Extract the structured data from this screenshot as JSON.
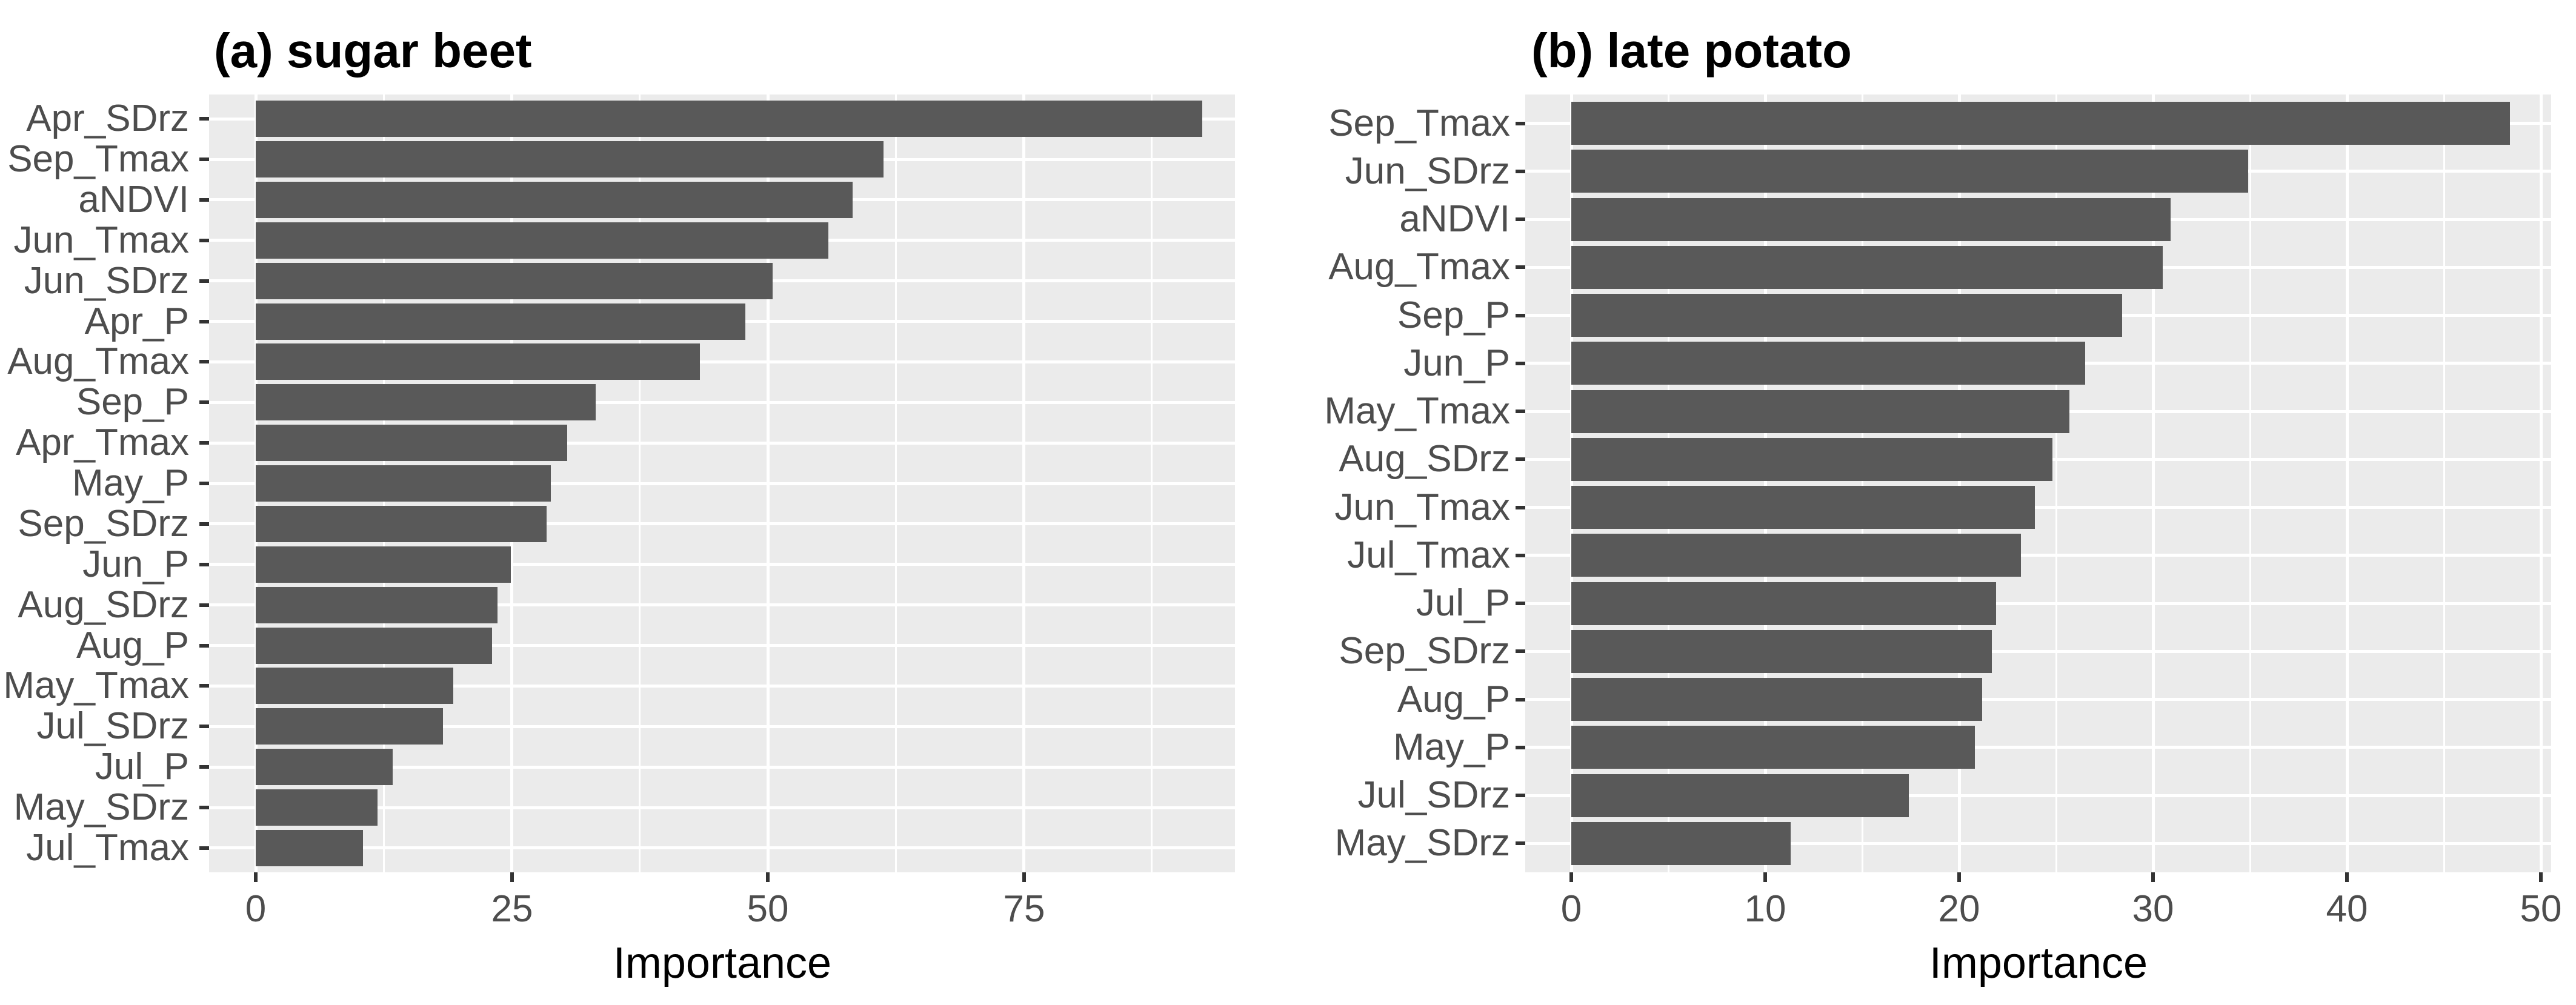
{
  "figure": {
    "background": "#FFFFFF"
  },
  "chart_data": [
    {
      "type": "bar",
      "orientation": "horizontal",
      "title": "(a) sugar beet",
      "xlabel": "Importance",
      "ylabel": "",
      "categories": [
        "Apr_SDrz",
        "Sep_Tmax",
        "aNDVI",
        "Jun_Tmax",
        "Jun_SDrz",
        "Apr_P",
        "Aug_Tmax",
        "Sep_P",
        "Apr_Tmax",
        "May_P",
        "Sep_SDrz",
        "Jun_P",
        "Aug_SDrz",
        "Aug_P",
        "May_Tmax",
        "Jul_SDrz",
        "Jul_P",
        "May_SDrz",
        "Jul_Tmax"
      ],
      "values": [
        92.4,
        61.3,
        58.3,
        55.9,
        50.5,
        47.8,
        43.4,
        33.2,
        30.4,
        28.8,
        28.4,
        24.9,
        23.6,
        23.1,
        19.3,
        18.3,
        13.4,
        11.9,
        10.5
      ],
      "x_ticks": [
        0,
        25,
        50,
        75
      ],
      "x_minor_ticks": [
        12.5,
        37.5,
        62.5,
        87.5
      ],
      "xlim": [
        0,
        95.6
      ],
      "grid": true,
      "legend": false
    },
    {
      "type": "bar",
      "orientation": "horizontal",
      "title": "(b) late potato",
      "xlabel": "Importance",
      "ylabel": "",
      "categories": [
        "Sep_Tmax",
        "Jun_SDrz",
        "aNDVI",
        "Aug_Tmax",
        "Sep_P",
        "Jun_P",
        "May_Tmax",
        "Aug_SDrz",
        "Jun_Tmax",
        "Jul_Tmax",
        "Jul_P",
        "Sep_SDrz",
        "Aug_P",
        "May_P",
        "Jul_SDrz",
        "May_SDrz"
      ],
      "values": [
        48.4,
        34.9,
        30.9,
        30.5,
        28.4,
        26.5,
        25.7,
        24.8,
        23.9,
        23.2,
        21.9,
        21.7,
        21.2,
        20.8,
        17.4,
        11.3
      ],
      "x_ticks": [
        0,
        10,
        20,
        30,
        40,
        50
      ],
      "x_minor_ticks": [
        5,
        15,
        25,
        35,
        45
      ],
      "xlim": [
        0,
        50.6
      ],
      "grid": true,
      "legend": false
    }
  ],
  "style": {
    "bar_color": "#595959",
    "panel_background": "#EBEBEB",
    "gridline_color": "#FFFFFF",
    "axis_text_color": "#4D4D4D",
    "tick_mark_color": "#333333",
    "title_color": "#000000"
  }
}
